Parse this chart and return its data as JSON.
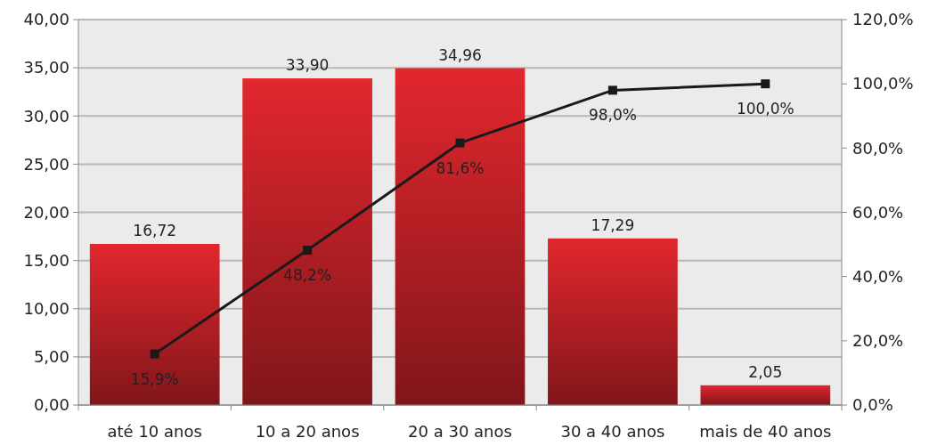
{
  "chart_data": {
    "type": "bar",
    "categories": [
      "até 10 anos",
      "10 a 20 anos",
      "20 a 30 anos",
      "30 a 40 anos",
      "mais de 40 anos"
    ],
    "series": [
      {
        "color": "#b01e24",
        "values": [
          16.72,
          33.9,
          34.96,
          17.29,
          2.05
        ],
        "value_labels": [
          "16,72",
          "33,90",
          "34,96",
          "17,29",
          "2,05"
        ]
      },
      {
        "type": "line",
        "axis": "y2",
        "color": "#1a1a1a",
        "marker": "square",
        "values": [
          15.9,
          48.2,
          81.6,
          98.0,
          100.0
        ],
        "value_labels": [
          "15,9%",
          "48,2%",
          "81,6%",
          "98,0%",
          "100,0%"
        ]
      }
    ],
    "ylim": [
      0,
      40
    ],
    "yticks": [
      {
        "value": 0,
        "label": "0,00"
      },
      {
        "value": 5,
        "label": "5,00"
      },
      {
        "value": 10,
        "label": "10,00"
      },
      {
        "value": 15,
        "label": "15,00"
      },
      {
        "value": 20,
        "label": "20,00"
      },
      {
        "value": 25,
        "label": "25,00"
      },
      {
        "value": 30,
        "label": "30,00"
      },
      {
        "value": 35,
        "label": "35,00"
      },
      {
        "value": 40,
        "label": "40,00"
      }
    ],
    "y2lim": [
      0,
      120
    ],
    "y2ticks": [
      {
        "value": 0,
        "label": "0,0%"
      },
      {
        "value": 20,
        "label": "20,0%"
      },
      {
        "value": 40,
        "label": "40,0%"
      },
      {
        "value": 60,
        "label": "60,0%"
      },
      {
        "value": 80,
        "label": "80,0%"
      },
      {
        "value": 100,
        "label": "100,0%"
      },
      {
        "value": 120,
        "label": "120,0%"
      }
    ],
    "grid": "y"
  }
}
